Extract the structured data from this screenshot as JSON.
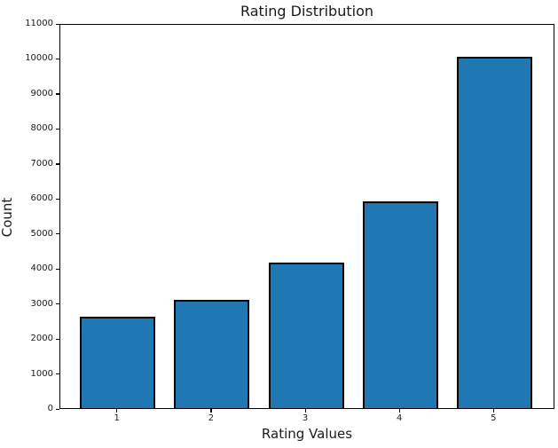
{
  "chart_data": {
    "type": "bar",
    "title": "Rating Distribution",
    "xlabel": "Rating Values",
    "ylabel": "Count",
    "categories": [
      "1",
      "2",
      "3",
      "4",
      "5"
    ],
    "values": [
      2620,
      3080,
      4150,
      5900,
      10040
    ],
    "ylim": [
      0,
      11000
    ],
    "yticks": [
      0,
      1000,
      2000,
      3000,
      4000,
      5000,
      6000,
      7000,
      8000,
      9000,
      10000,
      11000
    ],
    "grid": false,
    "legend": null,
    "colors": {
      "bar_fill": "#1f77b4",
      "bar_edge": "#000000",
      "spine": "#000000",
      "text": "#1a1a1a",
      "background": "#ffffff"
    }
  }
}
